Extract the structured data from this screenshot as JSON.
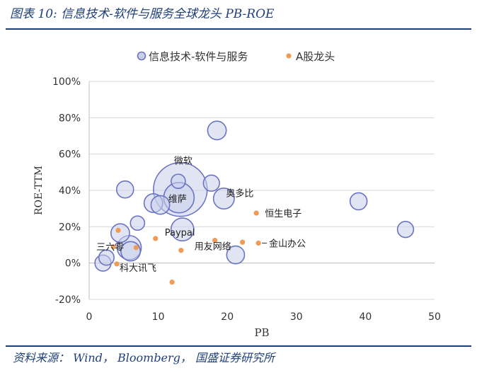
{
  "figure": {
    "title": "图表 10:  信息技术-软件与服务全球龙头 PB-ROE",
    "source": "资料来源： Wind， Bloomberg， 国盛证券研究所"
  },
  "colors": {
    "global_fill": "#c9cfea",
    "global_stroke": "#6b74c4",
    "a_share": "#ef9a55",
    "accent": "#1f3f7a",
    "text": "#222222",
    "axis": "#bfbfbf"
  },
  "chart_data": {
    "type": "scatter",
    "title": "",
    "xlabel": "PB",
    "ylabel": "ROE-TTM",
    "xlim": [
      0,
      50
    ],
    "ylim": [
      -20,
      100
    ],
    "x_ticks": [
      "0",
      "10",
      "20",
      "30",
      "40",
      "50"
    ],
    "x_tick_values": [
      0,
      10,
      20,
      30,
      40,
      50
    ],
    "y_ticks": [
      "-20%",
      "0%",
      "20%",
      "40%",
      "60%",
      "80%",
      "100%"
    ],
    "y_tick_values": [
      -20,
      0,
      20,
      40,
      60,
      80,
      100
    ],
    "legend": [
      {
        "name": "信息技术-软件与服务",
        "marker": "bubble"
      },
      {
        "name": "A股龙头",
        "marker": "dot"
      }
    ],
    "series": [
      {
        "name": "信息技术-软件与服务",
        "points": [
          {
            "x": 13.2,
            "y": 40.5,
            "size": 10.0,
            "label": "微软"
          },
          {
            "x": 13.0,
            "y": 36.0,
            "size": 3.2,
            "label": "维萨"
          },
          {
            "x": 18.5,
            "y": 73.0,
            "size": 1.2
          },
          {
            "x": 5.2,
            "y": 40.5,
            "size": 1.0
          },
          {
            "x": 9.3,
            "y": 33.0,
            "size": 1.2
          },
          {
            "x": 10.3,
            "y": 32.0,
            "size": 1.2
          },
          {
            "x": 12.9,
            "y": 45.0,
            "size": 0.7
          },
          {
            "x": 17.7,
            "y": 44.0,
            "size": 0.9
          },
          {
            "x": 19.5,
            "y": 35.5,
            "size": 1.5,
            "label": "奥多比"
          },
          {
            "x": 13.5,
            "y": 18.5,
            "size": 1.8,
            "label": "Paypal"
          },
          {
            "x": 7.0,
            "y": 22.0,
            "size": 0.7
          },
          {
            "x": 4.5,
            "y": 16.5,
            "size": 1.2
          },
          {
            "x": 5.8,
            "y": 8.5,
            "size": 2.0
          },
          {
            "x": 6.0,
            "y": 6.5,
            "size": 1.3
          },
          {
            "x": 2.5,
            "y": 3.0,
            "size": 0.8
          },
          {
            "x": 2.0,
            "y": 0.0,
            "size": 0.9
          },
          {
            "x": 21.2,
            "y": 4.5,
            "size": 1.1
          },
          {
            "x": 39.0,
            "y": 34.0,
            "size": 1.0
          },
          {
            "x": 45.8,
            "y": 18.5,
            "size": 0.9
          }
        ]
      },
      {
        "name": "A股龙头",
        "points": [
          {
            "x": 24.2,
            "y": 27.5,
            "label": "恒生电子"
          },
          {
            "x": 24.5,
            "y": 11.0,
            "label": "金山办公"
          },
          {
            "x": 22.2,
            "y": 11.5
          },
          {
            "x": 18.2,
            "y": 12.5
          },
          {
            "x": 13.3,
            "y": 7.0,
            "label": "用友网络"
          },
          {
            "x": 3.5,
            "y": 9.0,
            "label": "三六零"
          },
          {
            "x": 4.2,
            "y": 18.0
          },
          {
            "x": 9.6,
            "y": 13.5
          },
          {
            "x": 6.8,
            "y": 8.5
          },
          {
            "x": 12.0,
            "y": -10.5
          },
          {
            "x": 4.0,
            "y": -0.5,
            "label": "科大讯飞"
          }
        ]
      }
    ]
  }
}
